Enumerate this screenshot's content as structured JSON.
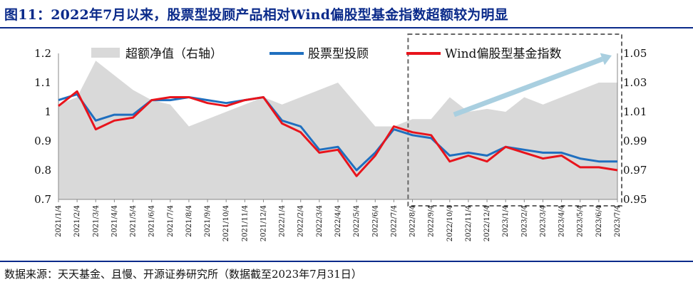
{
  "title": "图11：2022年7月以来，股票型投顾产品相对Wind偏股型基金指数超额较为明显",
  "source": "数据来源：天天基金、且慢、开源证券研究所（数据截至2023年7月31日）",
  "chart_data": {
    "type": "line",
    "x": [
      "2021/1/4",
      "2021/2/4",
      "2021/3/4",
      "2021/4/4",
      "2021/5/4",
      "2021/6/4",
      "2021/7/4",
      "2021/8/4",
      "2021/9/4",
      "2021/10/4",
      "2021/11/4",
      "2021/12/4",
      "2022/1/4",
      "2022/2/4",
      "2022/3/4",
      "2022/4/4",
      "2022/5/4",
      "2022/6/4",
      "2022/7/4",
      "2022/8/4",
      "2022/9/4",
      "2022/10/4",
      "2022/11/4",
      "2022/12/4",
      "2023/1/4",
      "2023/2/4",
      "2023/3/4",
      "2023/4/4",
      "2023/5/4",
      "2023/6/4",
      "2023/7/4"
    ],
    "x_tick_labels": [
      "2021/1/4",
      "2021/2/4",
      "2021/3/4",
      "2021/4/4",
      "2021/5/4",
      "2021/6/4",
      "2021/7/4",
      "2021/8/4",
      "2021/9/4",
      "2021/10/4",
      "2021/11/4",
      "2021/12/4",
      "2022/1/4",
      "2022/2/4",
      "2022/3/4",
      "2022/4/4",
      "2022/5/4",
      "2022/6/4",
      "2022/7/4",
      "2022/8/4",
      "2022/9/4",
      "2022/10/4",
      "2022/11/4",
      "2022/12/4",
      "2023/1/4",
      "2023/2/4",
      "2023/3/4",
      "2023/4/4",
      "2023/5/4",
      "2023/6/4",
      "2023/7/4"
    ],
    "y_left_ticks": [
      "0.7",
      "0.8",
      "0.9",
      "1",
      "1.1",
      "1.2"
    ],
    "y_right_ticks": [
      "0.95",
      "0.97",
      "0.99",
      "1.01",
      "1.03",
      "1.05"
    ],
    "ylim_left": [
      0.7,
      1.2
    ],
    "ylim_right": [
      0.95,
      1.05
    ],
    "legend_position": "top",
    "series": [
      {
        "name": "超额净值（右轴）",
        "axis": "right",
        "kind": "area",
        "color": "#d9d9d9",
        "values": [
          1.015,
          1.02,
          1.045,
          1.035,
          1.025,
          1.018,
          1.015,
          1.0,
          1.005,
          1.01,
          1.015,
          1.02,
          1.015,
          1.02,
          1.025,
          1.03,
          1.015,
          1.0,
          1.0,
          1.005,
          1.005,
          1.02,
          1.01,
          1.012,
          1.01,
          1.02,
          1.015,
          1.02,
          1.025,
          1.03,
          1.03
        ]
      },
      {
        "name": "股票型投顾",
        "axis": "left",
        "kind": "line",
        "color": "#1f6fbf",
        "values": [
          1.04,
          1.06,
          0.97,
          0.99,
          0.99,
          1.04,
          1.04,
          1.05,
          1.04,
          1.03,
          1.04,
          1.05,
          0.97,
          0.95,
          0.87,
          0.88,
          0.8,
          0.86,
          0.94,
          0.92,
          0.91,
          0.85,
          0.86,
          0.85,
          0.88,
          0.87,
          0.86,
          0.86,
          0.84,
          0.83,
          0.83
        ]
      },
      {
        "name": "Wind偏股型基金指数",
        "axis": "left",
        "kind": "line",
        "color": "#e8141c",
        "values": [
          1.02,
          1.07,
          0.94,
          0.97,
          0.98,
          1.04,
          1.05,
          1.05,
          1.03,
          1.02,
          1.04,
          1.05,
          0.96,
          0.93,
          0.86,
          0.87,
          0.78,
          0.85,
          0.95,
          0.93,
          0.92,
          0.83,
          0.85,
          0.83,
          0.88,
          0.86,
          0.84,
          0.85,
          0.81,
          0.81,
          0.8
        ]
      }
    ],
    "annotations": [
      {
        "type": "dashed-box",
        "from": "2022/7/4",
        "to": "2023/7/4"
      },
      {
        "type": "arrow",
        "color": "#a9cfe0",
        "from": "2022/10/4",
        "to": "2023/7/4"
      }
    ]
  }
}
